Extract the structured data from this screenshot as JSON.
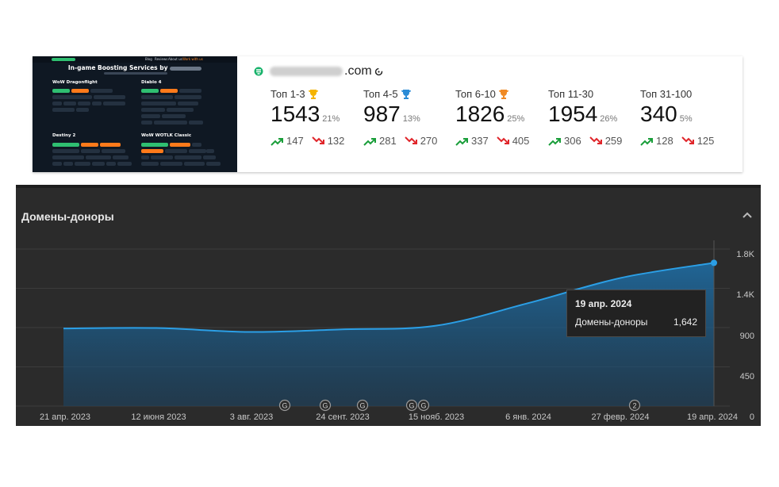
{
  "thumbnail": {
    "nav_links": [
      "Blog",
      "Reviews",
      "About us",
      "Work with us"
    ],
    "hero_title": "In-game Boosting Services by",
    "sections": [
      "WoW Dragonflight",
      "Diablo 4",
      "Destiny 2",
      "WoW WOTLK Classic"
    ]
  },
  "domain": {
    "tld": ".com"
  },
  "stats": [
    {
      "label": "Топ 1-3",
      "value": "1543",
      "pct": "21%",
      "up": "147",
      "down": "132",
      "trophy_color": "#f5b400"
    },
    {
      "label": "Топ 4-5",
      "value": "987",
      "pct": "13%",
      "up": "281",
      "down": "270",
      "trophy_color": "#2a8bd6"
    },
    {
      "label": "Топ 6-10",
      "value": "1826",
      "pct": "25%",
      "up": "337",
      "down": "405",
      "trophy_color": "#f08a24"
    },
    {
      "label": "Топ 11-30",
      "value": "1954",
      "pct": "26%",
      "up": "306",
      "down": "259"
    },
    {
      "label": "Топ 31-100",
      "value": "340",
      "pct": "5%",
      "up": "128",
      "down": "125"
    }
  ],
  "colors": {
    "up": "#1a9e3a",
    "down": "#e0262b",
    "line": "#2b9fe6",
    "panel_bg": "#2b2b2b"
  },
  "panel": {
    "title": "Домены-доноры",
    "y_ticks": [
      "1.8K",
      "1.4K",
      "900",
      "450",
      "0"
    ],
    "x_ticks": [
      "21 апр. 2023",
      "12 июня 2023",
      "3 авг. 2023",
      "24 сент. 2023",
      "15 нояб. 2023",
      "6 янв. 2024",
      "27 февр. 2024",
      "19 апр. 2024"
    ],
    "markers": [
      "G",
      "G",
      "G",
      "G",
      "G",
      "2"
    ],
    "tooltip": {
      "date": "19 апр. 2024",
      "key": "Домены-доноры",
      "value": "1,642"
    }
  },
  "chart_data": {
    "type": "area",
    "title": "Домены-доноры",
    "xlabel": "",
    "ylabel": "",
    "ylim": [
      0,
      1900
    ],
    "grid": true,
    "x": [
      "21 апр. 2023",
      "12 июня 2023",
      "3 авг. 2023",
      "24 сент. 2023",
      "15 нояб. 2023",
      "6 янв. 2024",
      "27 февр. 2024",
      "19 апр. 2024"
    ],
    "series": [
      {
        "name": "Домены-доноры",
        "values": [
          890,
          895,
          850,
          880,
          920,
          1180,
          1470,
          1642
        ]
      }
    ]
  }
}
